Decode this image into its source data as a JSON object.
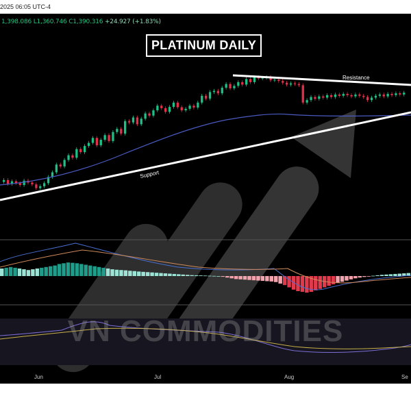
{
  "header": {
    "datetime": "2025 06:05 UTC-4",
    "ohlc": {
      "h": "1,398.086",
      "l": "L1,360.746",
      "c": "C1,390.316",
      "chg": "+24.927 (+1.83%)"
    }
  },
  "chart_data": {
    "type": "candlestick",
    "title": "PLATINUM DAILY",
    "annotations": [
      "Support",
      "Resistance"
    ],
    "watermark": "VN COMMODITIES",
    "x_tick_labels": [
      "Jun",
      "Jul",
      "Aug",
      "Se"
    ],
    "series": {
      "closes": [
        1060,
        1048,
        1056,
        1050,
        1044,
        1058,
        1052,
        1046,
        1034,
        1040,
        1050,
        1070,
        1085,
        1110,
        1104,
        1125,
        1140,
        1132,
        1160,
        1150,
        1170,
        1180,
        1196,
        1172,
        1190,
        1205,
        1186,
        1215,
        1225,
        1210,
        1250,
        1246,
        1262,
        1240,
        1258,
        1275,
        1268,
        1285,
        1300,
        1292,
        1280,
        1296,
        1310,
        1295,
        1285,
        1290,
        1300,
        1294,
        1310,
        1332,
        1323,
        1344,
        1348,
        1340,
        1358,
        1370,
        1356,
        1364,
        1376,
        1368,
        1386,
        1376,
        1392,
        1388,
        1390,
        1392,
        1382,
        1384,
        1380,
        1374,
        1368,
        1372,
        1370,
        1366,
        1310,
        1318,
        1328,
        1322,
        1330,
        1326,
        1334,
        1328,
        1336,
        1332,
        1338,
        1334,
        1330,
        1336,
        1332,
        1328,
        1318,
        1326,
        1332,
        1336,
        1330,
        1338,
        1334,
        1340,
        1336,
        1342
      ]
    },
    "macd_histogram": [
      0.5,
      0.55,
      0.6,
      0.55,
      0.5,
      0.45,
      0.4,
      0.45,
      0.5,
      0.55,
      0.6,
      0.65,
      0.7,
      0.8,
      0.85,
      0.9,
      0.88,
      0.85,
      0.8,
      0.75,
      0.7,
      0.65,
      0.6,
      0.55,
      0.5,
      0.45,
      0.42,
      0.4,
      0.38,
      0.35,
      0.33,
      0.3,
      0.28,
      0.26,
      0.24,
      0.22,
      0.2,
      0.18,
      0.16,
      0.14,
      0.12,
      0.1,
      0.08,
      0.06,
      0.05,
      0.04,
      0.03,
      0.02,
      0.01,
      0.0,
      -0.05,
      -0.1,
      -0.15,
      -0.2,
      -0.22,
      -0.24,
      -0.26,
      -0.28,
      -0.3,
      -0.32,
      -0.34,
      -0.36,
      -0.4,
      -0.5,
      -0.6,
      -0.75,
      -0.9,
      -1.0,
      -1.05,
      -1.1,
      -1.05,
      -0.95,
      -0.85,
      -0.75,
      -0.65,
      -0.55,
      -0.45,
      -0.38,
      -0.3,
      -0.22,
      -0.15,
      -0.1,
      -0.06,
      -0.03,
      0.02,
      0.05,
      0.08,
      0.1,
      0.12,
      0.14,
      0.16,
      0.18,
      0.2
    ],
    "colors": {
      "up": "#1fbf86",
      "down": "#e0304a",
      "ma": "#4a5bc2",
      "trend": "#ffffff"
    }
  }
}
